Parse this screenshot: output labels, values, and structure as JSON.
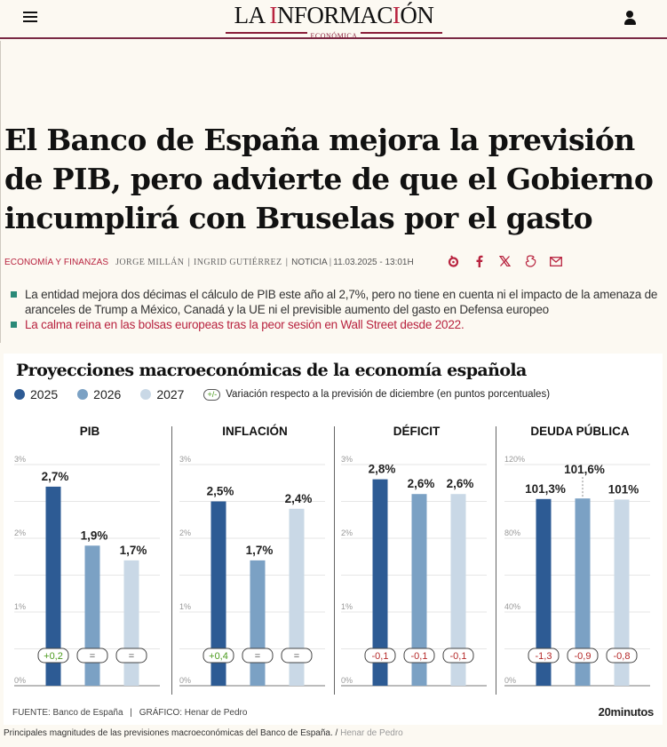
{
  "header": {
    "logo_main_a": "LA ",
    "logo_main_i": "I",
    "logo_main_b": "NFORMAC",
    "logo_main_i2": "I",
    "logo_main_c": "ÓN",
    "logo_sub": "ECONÓMICA",
    "menu_icon": "hamburger-icon",
    "user_icon": "user-icon"
  },
  "article": {
    "headline": "El Banco de España mejora la previsión de PIB, pero advierte de que el Gobierno incumplirá con Bruselas por el gasto",
    "section": "ECONOMÍA Y FINANZAS",
    "authors": [
      "JORGE MILLÁN",
      "INGRID GUTIÉRREZ"
    ],
    "type": "NOTICIA",
    "date": "11.03.2025 - 13:01H",
    "share_icons": [
      "menéame-icon",
      "facebook-icon",
      "x-icon",
      "flipboard-icon",
      "email-icon"
    ],
    "bullets": [
      {
        "text": "La entidad mejora dos décimas el cálculo de PIB este año al 2,7%, pero no tiene en cuenta ni el impacto de la amenaza de aranceles de Trump a México, Canadá y la UE ni el previsible aumento del gasto en Defensa europeo",
        "link": false
      },
      {
        "text": "La calma reina en las bolsas europeas tras la peor sesión en Wall Street desde 2022.",
        "link": true
      }
    ],
    "caption": "Principales magnitudes de las previsiones macroeconómicas del Banco de España.",
    "caption_sep": " / ",
    "caption_credit": "Henar de Pedro"
  },
  "chart_data": {
    "type": "bar",
    "title": "Proyecciones macroeconómicas de la economía española",
    "legend": [
      {
        "label": "2025",
        "color": "#2d5b94"
      },
      {
        "label": "2026",
        "color": "#7ba1c4"
      },
      {
        "label": "2027",
        "color": "#c9d8e6"
      }
    ],
    "legend_note_badge": "+/-",
    "legend_note": "Variación respecto a la previsión de diciembre (en puntos porcentuales)",
    "panels": [
      {
        "title": "PIB",
        "ylim": [
          0,
          3
        ],
        "ticks": [
          0,
          1,
          2,
          3
        ],
        "tick_labels": [
          "0%",
          "1%",
          "2%",
          "3%"
        ],
        "minor_step": 0.5,
        "values": [
          2.7,
          1.9,
          1.7
        ],
        "labels": [
          "2,7%",
          "1,9%",
          "1,7%"
        ],
        "changes": [
          "+0,2",
          "=",
          "="
        ],
        "change_kind": [
          "pos",
          "eq",
          "eq"
        ]
      },
      {
        "title": "INFLACIÓN",
        "ylim": [
          0,
          3
        ],
        "ticks": [
          0,
          1,
          2,
          3
        ],
        "tick_labels": [
          "0%",
          "1%",
          "2%",
          "3%"
        ],
        "minor_step": 0.5,
        "values": [
          2.5,
          1.7,
          2.4
        ],
        "labels": [
          "2,5%",
          "1,7%",
          "2,4%"
        ],
        "changes": [
          "+0,4",
          "=",
          "="
        ],
        "change_kind": [
          "pos",
          "eq",
          "eq"
        ]
      },
      {
        "title": "DÉFICIT",
        "ylim": [
          0,
          3
        ],
        "ticks": [
          0,
          1,
          2,
          3
        ],
        "tick_labels": [
          "0%",
          "1%",
          "2%",
          "3%"
        ],
        "minor_step": 0.5,
        "values": [
          2.8,
          2.6,
          2.6
        ],
        "labels": [
          "2,8%",
          "2,6%",
          "2,6%"
        ],
        "changes": [
          "-0,1",
          "-0,1",
          "-0,1"
        ],
        "change_kind": [
          "neg",
          "neg",
          "neg"
        ]
      },
      {
        "title": "DEUDA PÚBLICA",
        "ylim": [
          0,
          120
        ],
        "ticks": [
          0,
          40,
          80,
          120
        ],
        "tick_labels": [
          "0%",
          "40%",
          "80%",
          "120%"
        ],
        "minor_step": 20,
        "values": [
          101.3,
          101.6,
          101
        ],
        "labels": [
          "101,3%",
          "101,6%",
          "101%"
        ],
        "changes": [
          "-1,3",
          "-0,9",
          "-0,8"
        ],
        "change_kind": [
          "neg",
          "neg",
          "neg"
        ]
      }
    ],
    "source": "FUENTE: Banco de España",
    "graphic": "GRÁFICO: Henar de Pedro",
    "brand": "20minutos",
    "colors": {
      "pos": "#4a9a1c",
      "neg": "#b52a2a",
      "eq": "#555555"
    }
  }
}
